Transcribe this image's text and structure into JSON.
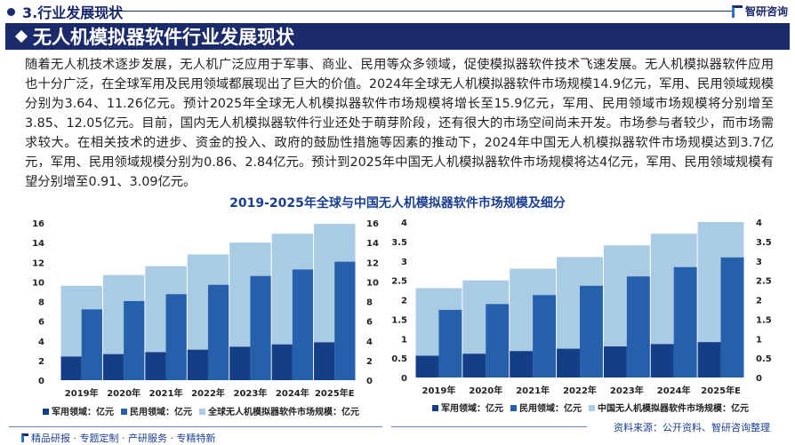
{
  "header": {
    "section": "3.行业发展现状",
    "logo": "智研咨询",
    "banner": "无人机模拟器软件行业发展现状"
  },
  "paragraph": "随着无人机技术逐步发展，无人机广泛应用于军事、商业、民用等众多领域，促使模拟器软件技术飞速发展。无人机模拟器软件应用也十分广泛，在全球军用及民用领域都展现出了巨大的价值。2024年全球无人机模拟器软件市场规模14.9亿元，军用、民用领域规模分别为3.64、11.26亿元。预计2025年全球无人机模拟器软件市场规模将增长至15.9亿元，军用、民用领域市场规模将分别增至3.85、12.05亿元。目前，国内无人机模拟器软件行业还处于萌芽阶段，还有很大的市场空间尚未开发。市场参与者较少，而市场需求较大。在相关技术的进步、资金的投入、政府的鼓励性措施等因素的推动下，2024年中国无人机模拟器软件市场规模达到3.7亿元，军用、民用领域规模分别为0.86、2.84亿元。预计到2025年中国无人机模拟器软件市场规模将达4亿元，军用、民用领域规模有望分别增至0.91、3.09亿元。",
  "chart_title": "2019-2025年全球与中国无人机模拟器软件市场规模及细分",
  "colors": {
    "military": "#143f86",
    "civil": "#2660aa",
    "total": "#a9cbe3"
  },
  "chart_data": [
    {
      "type": "bar",
      "categories": [
        "2019年",
        "2020年",
        "2021年",
        "2022年",
        "2023年",
        "2024年",
        "2025年E"
      ],
      "ylim": [
        0,
        16
      ],
      "yticks": [
        0,
        2,
        4,
        6,
        8,
        10,
        12,
        14,
        16
      ],
      "legend": "bottom",
      "series": [
        {
          "name": "军用领域：亿元",
          "values": [
            2.4,
            2.65,
            2.85,
            3.1,
            3.4,
            3.64,
            3.85
          ]
        },
        {
          "name": "民用领域：亿元",
          "values": [
            7.2,
            8.05,
            8.75,
            9.7,
            10.6,
            11.26,
            12.05
          ]
        },
        {
          "name": "全球无人机模拟器软件市场规模：亿元",
          "values": [
            9.6,
            10.7,
            11.6,
            12.8,
            14.0,
            14.9,
            15.9
          ]
        }
      ]
    },
    {
      "type": "bar",
      "categories": [
        "2019年",
        "2020年",
        "2021年",
        "2022年",
        "2023年",
        "2024年",
        "2025年E"
      ],
      "ylim": [
        0,
        4
      ],
      "yticks": [
        0,
        0.5,
        1,
        1.5,
        2,
        2.5,
        3,
        3.5,
        4
      ],
      "legend": "bottom",
      "series": [
        {
          "name": "军用领域：亿元",
          "values": [
            0.56,
            0.61,
            0.68,
            0.74,
            0.8,
            0.86,
            0.91
          ]
        },
        {
          "name": "民用领域：亿元",
          "values": [
            1.74,
            1.89,
            2.12,
            2.36,
            2.6,
            2.84,
            3.09
          ]
        },
        {
          "name": "中国无人机模拟器软件市场规模：亿元",
          "values": [
            2.3,
            2.5,
            2.8,
            3.1,
            3.4,
            3.7,
            4.0
          ]
        }
      ]
    }
  ],
  "footer": {
    "left": "精品研报 · 专题定制 · 产研服务 · 专精特新",
    "source": "资料来源：公开资料、智研咨询整理"
  }
}
